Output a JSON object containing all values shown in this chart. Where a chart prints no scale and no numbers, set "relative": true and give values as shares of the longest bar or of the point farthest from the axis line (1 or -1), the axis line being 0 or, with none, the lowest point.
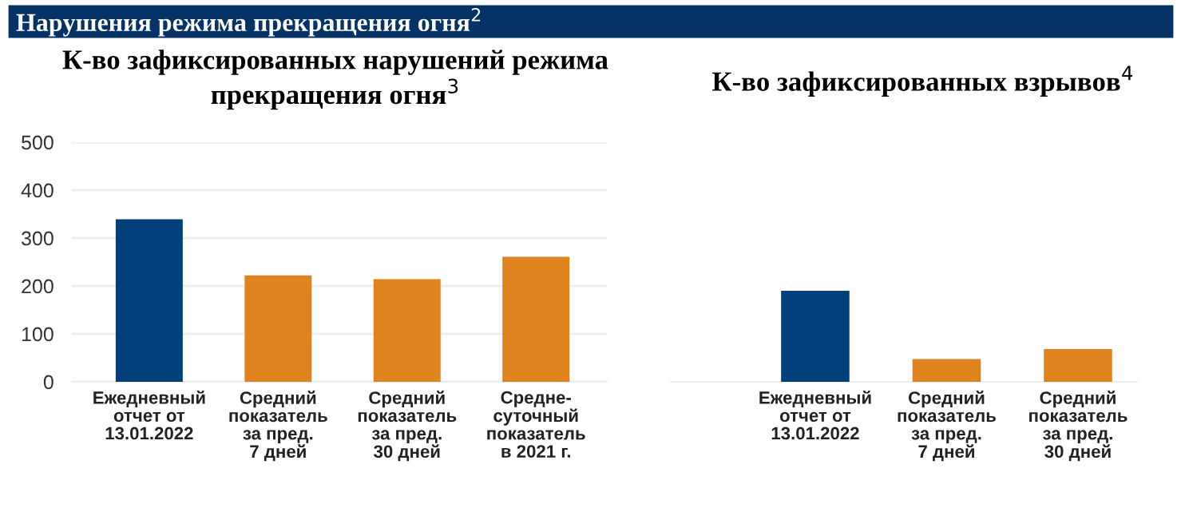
{
  "chart_data": [
    {
      "type": "bar",
      "title": "Нарушения режима прекращения огня$^{2}$",
      "subtitle": "К-во зафиксированных нарушений режима\nпрекращения огня$^{3}$",
      "categories": [
        "Ежедневный\nотчет от\n13.01.2022",
        "Средний\nпоказатель\nза пред.\n7 дней",
        "Средний\nпоказатель\nза пред.\n30 дней",
        "Средне-\nсуточный\nпоказатель\nв 2021 г."
      ],
      "values": [
        339,
        222,
        214,
        261
      ],
      "colors": [
        "#003f7a",
        "#e0821e",
        "#e0821e",
        "#e0821e"
      ],
      "ylim": [
        0,
        500
      ],
      "yticks": [
        0,
        100,
        200,
        300,
        400,
        500
      ],
      "grid": "y"
    },
    {
      "type": "bar",
      "title": "К-во зафиксированных взрывов$^{4}$",
      "categories": [
        "Ежедневный\nотчет от\n13.01.2022",
        "Средний\nпоказатель\nза пред.\n7 дней",
        "Средний\nпоказатель\nза пред.\n30 дней"
      ],
      "values": [
        1,
        0.25,
        0.36
      ],
      "colors": [
        "#003f7a",
        "#e0821e",
        "#e0821e"
      ],
      "relative": true
    }
  ]
}
